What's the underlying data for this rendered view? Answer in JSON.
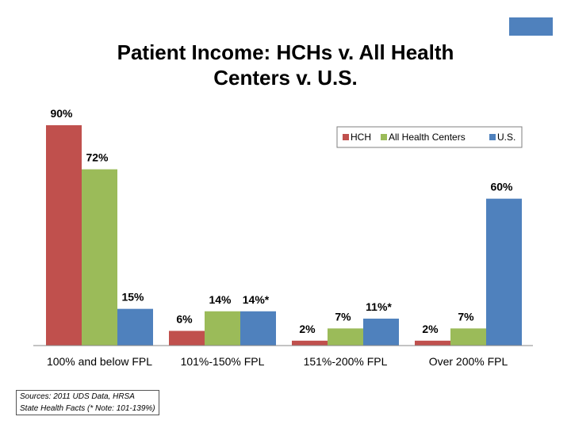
{
  "slide": {
    "title_line1": "Patient Income:  HCHs v. All Health",
    "title_line2": "Centers v. U.S.",
    "sources_line1": "Sources:  2011 UDS Data, HRSA",
    "sources_line2": "State Health Facts (* Note: 101-139%)",
    "accent_color": "#4f81bd"
  },
  "chart_data": {
    "type": "bar",
    "categories": [
      "100% and below FPL",
      "101%-150% FPL",
      "151%-200% FPL",
      "Over 200% FPL"
    ],
    "series": [
      {
        "name": "HCH",
        "color": "#c0504d",
        "values": [
          90,
          6,
          2,
          2
        ],
        "labels": [
          "90%",
          "6%",
          "2%",
          "2%"
        ]
      },
      {
        "name": "All Health Centers",
        "color": "#9bbb59",
        "values": [
          72,
          14,
          7,
          7
        ],
        "labels": [
          "72%",
          "14%",
          "7%",
          "7%"
        ]
      },
      {
        "name": "U.S.",
        "color": "#4f81bd",
        "values": [
          15,
          14,
          11,
          60
        ],
        "labels": [
          "15%",
          "14%*",
          "11%*",
          "60%"
        ]
      }
    ],
    "ylim": [
      0,
      90
    ],
    "grid": false,
    "legend_position": "top-right"
  }
}
